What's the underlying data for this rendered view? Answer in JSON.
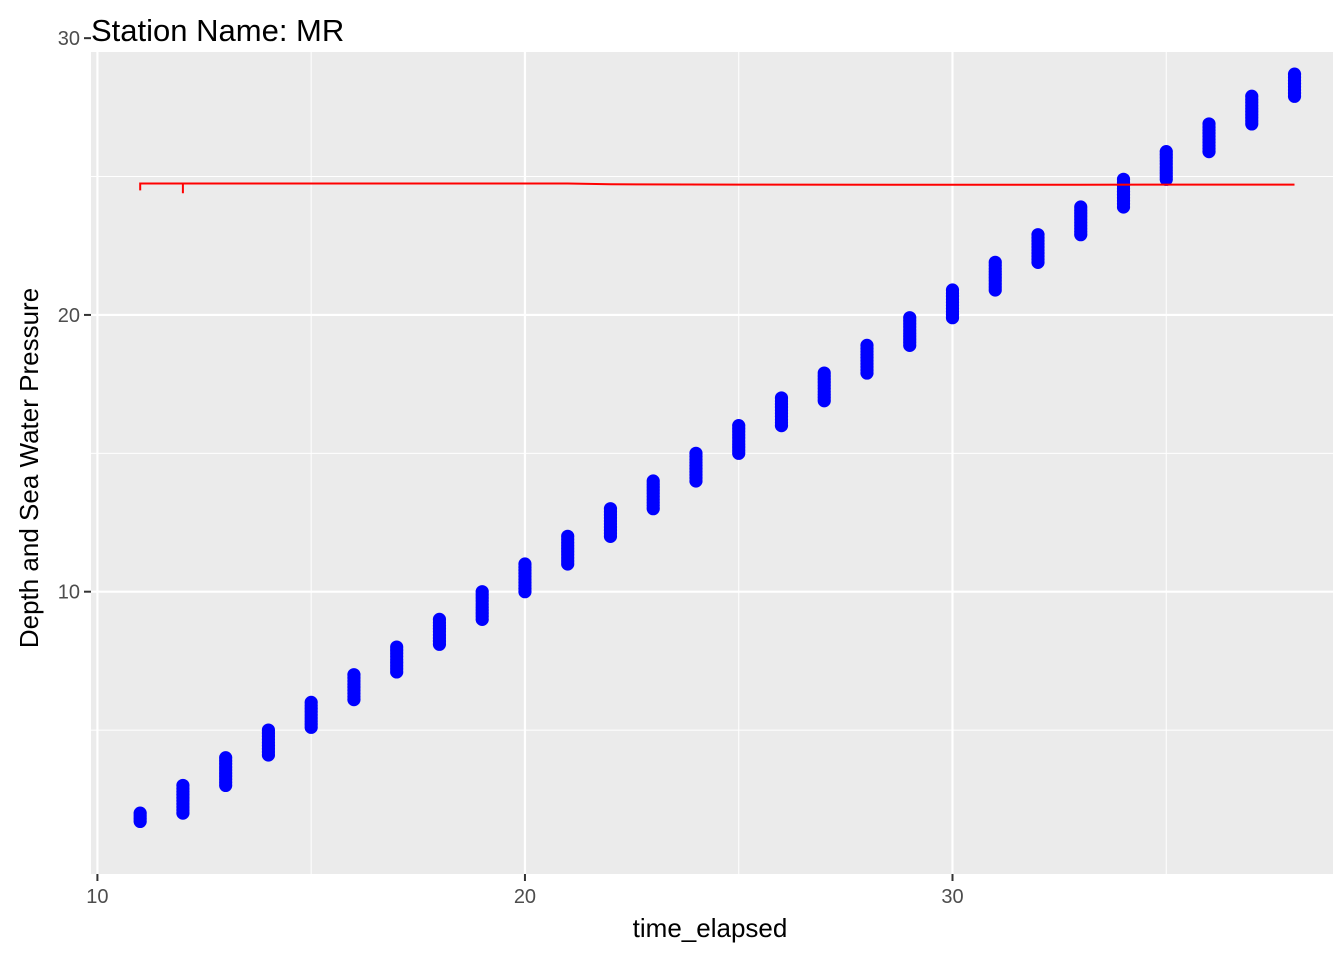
{
  "chart_data": {
    "type": "scatter",
    "title": "Station Name: MR",
    "xlabel": "time_elapsed",
    "ylabel": "Depth and Sea Water Pressure",
    "xlim": [
      9.85,
      38.9
    ],
    "ylim": [
      -0.2,
      29.5
    ],
    "x_ticks": [
      10,
      20,
      30
    ],
    "y_ticks": [
      10,
      20,
      30
    ],
    "x_minor": [
      15,
      25,
      35
    ],
    "y_minor": [
      5,
      15,
      25
    ],
    "grid": true,
    "legend": "none",
    "colors": {
      "panel": "#ebebeb",
      "grid": "#ffffff",
      "points": "#0000ff",
      "line": "#ff0000",
      "tick": "#333333"
    },
    "point_groups": [
      {
        "x": 11,
        "y_min": 1.7,
        "y_max": 2.0
      },
      {
        "x": 12,
        "y_min": 2.0,
        "y_max": 3.0
      },
      {
        "x": 13,
        "y_min": 3.0,
        "y_max": 4.0
      },
      {
        "x": 14,
        "y_min": 4.1,
        "y_max": 5.0
      },
      {
        "x": 15,
        "y_min": 5.1,
        "y_max": 6.0
      },
      {
        "x": 16,
        "y_min": 6.1,
        "y_max": 7.0
      },
      {
        "x": 17,
        "y_min": 7.1,
        "y_max": 8.0
      },
      {
        "x": 18,
        "y_min": 8.1,
        "y_max": 9.0
      },
      {
        "x": 19,
        "y_min": 9.0,
        "y_max": 10.0
      },
      {
        "x": 20,
        "y_min": 10.0,
        "y_max": 11.0
      },
      {
        "x": 21,
        "y_min": 11.0,
        "y_max": 12.0
      },
      {
        "x": 22,
        "y_min": 12.0,
        "y_max": 13.0
      },
      {
        "x": 23,
        "y_min": 13.0,
        "y_max": 14.0
      },
      {
        "x": 24,
        "y_min": 14.0,
        "y_max": 15.0
      },
      {
        "x": 25,
        "y_min": 15.0,
        "y_max": 16.0
      },
      {
        "x": 26,
        "y_min": 16.0,
        "y_max": 17.0
      },
      {
        "x": 27,
        "y_min": 16.9,
        "y_max": 17.9
      },
      {
        "x": 28,
        "y_min": 17.9,
        "y_max": 18.9
      },
      {
        "x": 29,
        "y_min": 18.9,
        "y_max": 19.9
      },
      {
        "x": 30,
        "y_min": 19.9,
        "y_max": 20.9
      },
      {
        "x": 31,
        "y_min": 20.9,
        "y_max": 21.9
      },
      {
        "x": 32,
        "y_min": 21.9,
        "y_max": 22.9
      },
      {
        "x": 33,
        "y_min": 22.9,
        "y_max": 23.9
      },
      {
        "x": 34,
        "y_min": 23.9,
        "y_max": 24.9
      },
      {
        "x": 35,
        "y_min": 24.9,
        "y_max": 25.9
      },
      {
        "x": 36,
        "y_min": 25.9,
        "y_max": 26.9
      },
      {
        "x": 37,
        "y_min": 26.9,
        "y_max": 27.9
      },
      {
        "x": 38,
        "y_min": 27.9,
        "y_max": 28.7
      }
    ],
    "line": [
      [
        11,
        24.5
      ],
      [
        11,
        24.75
      ],
      [
        12,
        24.75
      ],
      [
        12,
        24.4
      ],
      [
        12,
        24.75
      ],
      [
        20,
        24.75
      ],
      [
        21,
        24.75
      ],
      [
        22,
        24.72
      ],
      [
        25,
        24.71
      ],
      [
        30,
        24.7
      ],
      [
        33,
        24.7
      ],
      [
        35,
        24.71
      ],
      [
        38,
        24.71
      ]
    ]
  }
}
